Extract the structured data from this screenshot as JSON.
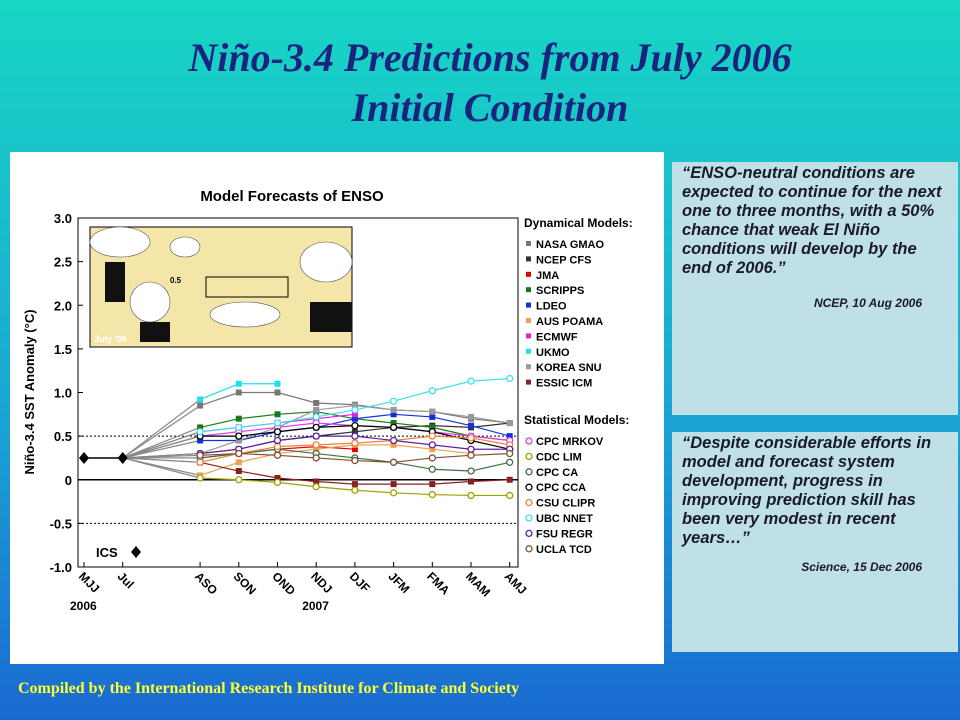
{
  "slide": {
    "title": [
      "Niño-3.4 Predictions from July 2006",
      "Initial Condition"
    ],
    "quotes": [
      {
        "text": "“ENSO-neutral conditions are expected to continue for the next one to three months, with a 50% chance that weak El Niño conditions will develop by the end of 2006.”",
        "source": "NCEP, 10 Aug 2006"
      },
      {
        "text": "“Despite considerable efforts in model and forecast system development, progress in improving prediction skill has been very modest in recent years…”",
        "source": "Science, 15 Dec 2006"
      }
    ],
    "footer": "Compiled by the International Research Institute for Climate and Society"
  },
  "chart_data": {
    "type": "line",
    "title": "Model Forecasts of ENSO",
    "y_label": "Niño-3.4 SST Anomaly (°C)",
    "categories": [
      "MJJ",
      "Jul",
      null,
      "ASO",
      "SON",
      "OND",
      "NDJ",
      "DJF",
      "JFM",
      "FMA",
      "MAM",
      "AMJ"
    ],
    "year_labels": [
      "2006",
      "2007"
    ],
    "inset_labels": [
      "July '06",
      "0.5"
    ],
    "ylim": [
      -1.0,
      3.0
    ],
    "yticks": [
      {
        "value": -1,
        "label": "-1.0"
      },
      {
        "value": -0.5,
        "label": "-0.5"
      },
      0,
      {
        "value": 0.5,
        "label": "0.5"
      },
      {
        "value": 1,
        "label": "1.0"
      },
      {
        "value": 1.5,
        "label": "1.5"
      },
      {
        "value": 2,
        "label": "2.0"
      },
      {
        "value": 2.5,
        "label": "2.5"
      },
      {
        "value": 3,
        "label": "3.0"
      }
    ],
    "reference_lines": [
      -0.5,
      0,
      0.5
    ],
    "legend_groups": [
      "Dynamical Models:",
      "Statistical Models:"
    ],
    "initial": {
      "name": "ICS",
      "color": "#000000",
      "values": [
        0.25,
        0.25,
        null,
        null,
        null,
        null,
        null,
        null,
        null,
        null,
        null,
        null
      ]
    },
    "series": [
      {
        "name": "NASA GMAO",
        "group": 0,
        "color": "#777777",
        "values": [
          null,
          null,
          null,
          0.85,
          1.0,
          1.0,
          0.88,
          0.86,
          0.8,
          0.78,
          0.7,
          0.65
        ]
      },
      {
        "name": "NCEP CFS",
        "group": 0,
        "color": "#333333",
        "values": [
          null,
          null,
          null,
          0.3,
          0.35,
          0.45,
          0.5,
          0.55,
          0.6,
          0.62,
          0.6,
          0.65
        ]
      },
      {
        "name": "JMA",
        "group": 0,
        "color": "#e00000",
        "values": [
          null,
          null,
          null,
          0.25,
          0.3,
          0.35,
          0.38,
          0.35,
          null,
          null,
          null,
          null
        ]
      },
      {
        "name": "SCRIPPS",
        "group": 0,
        "color": "#1a7a1a",
        "values": [
          null,
          null,
          null,
          0.6,
          0.7,
          0.75,
          0.78,
          0.7,
          0.65,
          0.6,
          0.5,
          0.45
        ]
      },
      {
        "name": "LDEO",
        "group": 0,
        "color": "#1030e0",
        "values": [
          null,
          null,
          null,
          0.45,
          0.45,
          0.55,
          0.6,
          0.7,
          0.75,
          0.72,
          0.62,
          0.5
        ]
      },
      {
        "name": "AUS POAMA",
        "group": 0,
        "color": "#f0a050",
        "values": [
          null,
          null,
          null,
          0.05,
          0.2,
          0.3,
          0.35,
          0.4,
          0.4,
          0.35,
          0.3,
          null
        ]
      },
      {
        "name": "ECMWF",
        "group": 0,
        "color": "#e020e0",
        "values": [
          null,
          null,
          null,
          0.55,
          0.6,
          0.65,
          0.7,
          0.75,
          null,
          null,
          null,
          null
        ]
      },
      {
        "name": "UKMO",
        "group": 0,
        "color": "#20e0f0",
        "values": [
          null,
          null,
          null,
          0.92,
          1.1,
          1.1,
          null,
          null,
          null,
          null,
          null,
          null
        ]
      },
      {
        "name": "KOREA SNU",
        "group": 0,
        "color": "#999999",
        "values": [
          null,
          null,
          null,
          0.3,
          0.45,
          0.6,
          0.8,
          0.85,
          0.8,
          0.78,
          0.72,
          0.65
        ]
      },
      {
        "name": "ESSIC ICM",
        "group": 0,
        "color": "#8b2020",
        "values": [
          null,
          null,
          null,
          0.2,
          0.1,
          0.02,
          -0.02,
          -0.05,
          -0.05,
          -0.05,
          -0.02,
          0.0
        ]
      },
      {
        "name": "CPC MRKOV",
        "group": 1,
        "color": "#e040e0",
        "values": [
          null,
          null,
          null,
          0.5,
          0.55,
          0.6,
          0.65,
          0.62,
          0.6,
          0.55,
          0.5,
          0.45
        ]
      },
      {
        "name": "CDC LIM",
        "group": 1,
        "color": "#a0a000",
        "values": [
          null,
          null,
          null,
          0.02,
          0.0,
          -0.03,
          -0.08,
          -0.12,
          -0.15,
          -0.17,
          -0.18,
          -0.18
        ]
      },
      {
        "name": "CPC CA",
        "group": 1,
        "color": "#407040",
        "values": [
          null,
          null,
          null,
          0.25,
          0.3,
          0.35,
          0.3,
          0.25,
          0.2,
          0.12,
          0.1,
          0.2
        ]
      },
      {
        "name": "CPC CCA",
        "group": 1,
        "color": "#000000",
        "values": [
          null,
          null,
          null,
          0.5,
          0.5,
          0.55,
          0.6,
          0.62,
          0.6,
          0.55,
          0.45,
          0.35
        ]
      },
      {
        "name": "CSU CLIPR",
        "group": 1,
        "color": "#f08040",
        "values": [
          null,
          null,
          null,
          0.2,
          0.3,
          0.38,
          0.4,
          0.42,
          0.45,
          0.5,
          0.48,
          0.4
        ]
      },
      {
        "name": "UBC NNET",
        "group": 1,
        "color": "#40e0f0",
        "values": [
          null,
          null,
          null,
          0.55,
          0.6,
          0.65,
          0.72,
          0.8,
          0.9,
          1.02,
          1.13,
          1.16
        ]
      },
      {
        "name": "FSU REGR",
        "group": 1,
        "color": "#6020a0",
        "values": [
          null,
          null,
          null,
          0.3,
          0.35,
          0.45,
          0.5,
          0.5,
          0.45,
          0.4,
          0.35,
          0.35
        ]
      },
      {
        "name": "UCLA TCD",
        "group": 1,
        "color": "#805030",
        "values": [
          null,
          null,
          null,
          0.28,
          0.3,
          0.28,
          0.25,
          0.22,
          0.2,
          0.25,
          0.28,
          0.3
        ]
      }
    ]
  }
}
